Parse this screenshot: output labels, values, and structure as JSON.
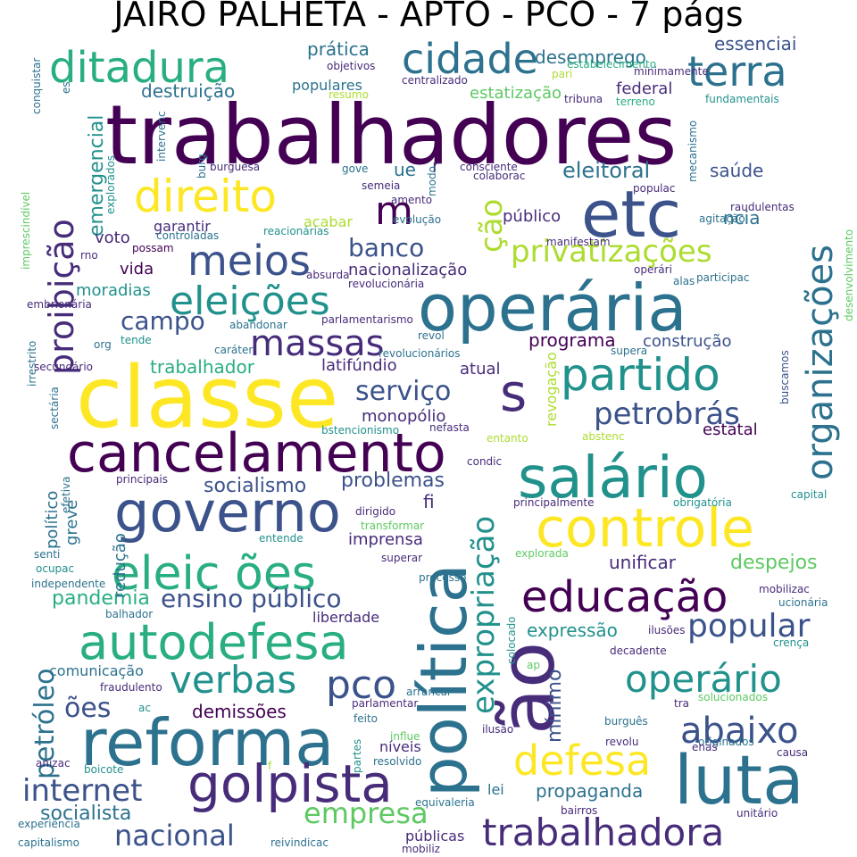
{
  "title": "JAIRO PALHETA - APTO - PCO - 7 págs",
  "palette": {
    "purple": "#440154",
    "indigo": "#472c7a",
    "blue": "#3b528b",
    "steel": "#2c728e",
    "teal": "#21918c",
    "green": "#28ae80",
    "lime": "#5ec962",
    "yellowgreen": "#addc30",
    "yellow": "#fde725"
  },
  "words": [
    {
      "text": "trabalhadores",
      "c": "purple"
    },
    {
      "text": "classe",
      "c": "yellow"
    },
    {
      "text": "operária",
      "c": "steel"
    },
    {
      "text": "política",
      "c": "steel"
    },
    {
      "text": "ão",
      "c": "indigo"
    },
    {
      "text": "cancelamento",
      "c": "purple"
    },
    {
      "text": "reforma",
      "c": "steel"
    },
    {
      "text": "salário",
      "c": "teal"
    },
    {
      "text": "luta",
      "c": "steel"
    },
    {
      "text": "governo",
      "c": "blue"
    },
    {
      "text": "controle",
      "c": "yellow"
    },
    {
      "text": "etc",
      "c": "blue"
    },
    {
      "text": "autodefesa",
      "c": "green"
    },
    {
      "text": "golpista",
      "c": "indigo"
    },
    {
      "text": "s",
      "c": "indigo"
    },
    {
      "text": "educação",
      "c": "purple"
    },
    {
      "text": "eleic ões",
      "c": "green"
    },
    {
      "text": "partido",
      "c": "teal"
    },
    {
      "text": "direito",
      "c": "yellow"
    },
    {
      "text": "eleições",
      "c": "teal"
    },
    {
      "text": "ditadura",
      "c": "green"
    },
    {
      "text": "meios",
      "c": "blue"
    },
    {
      "text": "organizações",
      "c": "steel"
    },
    {
      "text": "trabalhadora",
      "c": "indigo"
    },
    {
      "text": "cidade",
      "c": "steel"
    },
    {
      "text": "terra",
      "c": "steel"
    },
    {
      "text": "defesa",
      "c": "yellow"
    },
    {
      "text": "operário",
      "c": "teal"
    },
    {
      "text": "abaixo",
      "c": "blue"
    },
    {
      "text": "massas",
      "c": "indigo"
    },
    {
      "text": "expropriação",
      "c": "teal"
    },
    {
      "text": "verbas",
      "c": "teal"
    },
    {
      "text": "proibição",
      "c": "indigo"
    },
    {
      "text": "pco",
      "c": "blue"
    },
    {
      "text": "ção",
      "c": "yellowgreen"
    },
    {
      "text": "privatizações",
      "c": "yellowgreen"
    },
    {
      "text": "popular",
      "c": "blue"
    },
    {
      "text": "petrobrás",
      "c": "blue"
    },
    {
      "text": "internet",
      "c": "blue"
    },
    {
      "text": "nacional",
      "c": "blue"
    },
    {
      "text": "empresa",
      "c": "lime"
    },
    {
      "text": "serviço",
      "c": "blue"
    },
    {
      "text": "campo",
      "c": "blue"
    },
    {
      "text": "banco",
      "c": "blue"
    },
    {
      "text": "petróleo",
      "c": "steel"
    },
    {
      "text": "ões",
      "c": "blue"
    },
    {
      "text": "m",
      "c": "purple"
    },
    {
      "text": "socialista",
      "c": "steel"
    },
    {
      "text": "ensino público",
      "c": "blue"
    },
    {
      "text": "eleitoral",
      "c": "steel"
    },
    {
      "text": "pandemia",
      "c": "green"
    },
    {
      "text": "mínimo",
      "c": "blue"
    },
    {
      "text": "despejos",
      "c": "lime"
    },
    {
      "text": "unificar",
      "c": "indigo"
    },
    {
      "text": "propaganda",
      "c": "steel"
    },
    {
      "text": "programa",
      "c": "purple"
    },
    {
      "text": "socialismo",
      "c": "blue"
    },
    {
      "text": "problemas",
      "c": "blue"
    },
    {
      "text": "emergencial",
      "c": "teal"
    },
    {
      "text": "demissões",
      "c": "purple"
    },
    {
      "text": "expressão",
      "c": "teal"
    },
    {
      "text": "essenciai",
      "c": "blue"
    },
    {
      "text": "desemprego",
      "c": "steel"
    },
    {
      "text": "construção",
      "c": "blue"
    },
    {
      "text": "trabalhador",
      "c": "green"
    },
    {
      "text": "prática",
      "c": "steel"
    },
    {
      "text": "destruição",
      "c": "steel"
    },
    {
      "text": "monopólio",
      "c": "indigo"
    },
    {
      "text": "latifúndio",
      "c": "indigo"
    },
    {
      "text": "moradias",
      "c": "teal"
    },
    {
      "text": "liberdade",
      "c": "indigo"
    },
    {
      "text": "saúde",
      "c": "blue"
    },
    {
      "text": "público",
      "c": "indigo"
    },
    {
      "text": "estatal",
      "c": "purple"
    },
    {
      "text": "estatização",
      "c": "lime"
    },
    {
      "text": "atual",
      "c": "indigo"
    },
    {
      "text": "ncia",
      "c": "steel"
    },
    {
      "text": "nacionalização",
      "c": "indigo"
    },
    {
      "text": "garantir",
      "c": "indigo"
    },
    {
      "text": "comunicação",
      "c": "steel"
    },
    {
      "text": "redução",
      "c": "steel"
    },
    {
      "text": "federal",
      "c": "indigo"
    },
    {
      "text": "populares",
      "c": "steel"
    },
    {
      "text": "imprensa",
      "c": "indigo"
    },
    {
      "text": "voto",
      "c": "indigo"
    },
    {
      "text": "vida",
      "c": "purple"
    },
    {
      "text": "político",
      "c": "steel"
    },
    {
      "text": "níveis",
      "c": "indigo"
    },
    {
      "text": "lei",
      "c": "steel"
    },
    {
      "text": "acabar",
      "c": "yellowgreen"
    },
    {
      "text": "revogação",
      "c": "yellowgreen"
    },
    {
      "text": "ue",
      "c": "steel"
    },
    {
      "text": "r",
      "c": "indigo"
    },
    {
      "text": "fi",
      "c": "indigo"
    },
    {
      "text": "greve",
      "c": "steel"
    },
    {
      "text": "públicas",
      "c": "indigo"
    },
    {
      "text": "tribuna",
      "c": "indigo"
    },
    {
      "text": "fundamentais",
      "c": "teal"
    },
    {
      "text": "revolucionária",
      "c": "indigo"
    },
    {
      "text": "manifestam",
      "c": "indigo"
    },
    {
      "text": "principalmente",
      "c": "indigo"
    },
    {
      "text": "obrigatória",
      "c": "teal"
    },
    {
      "text": "explorada",
      "c": "lime"
    },
    {
      "text": "mobilizac",
      "c": "indigo"
    },
    {
      "text": "decadente",
      "c": "indigo"
    },
    {
      "text": "solucionados",
      "c": "lime"
    },
    {
      "text": "originados",
      "c": "steel"
    },
    {
      "text": "revolu",
      "c": "indigo"
    },
    {
      "text": "buscamos",
      "c": "blue"
    },
    {
      "text": "desenvolvimento",
      "c": "lime"
    },
    {
      "text": "estabelecimento",
      "c": "green"
    },
    {
      "text": "conquistar",
      "c": "steel"
    },
    {
      "text": "es",
      "c": "steel"
    },
    {
      "text": "objetivos",
      "c": "indigo"
    },
    {
      "text": "centralizado",
      "c": "indigo"
    },
    {
      "text": "resumo",
      "c": "yellowgreen"
    },
    {
      "text": "minimamente",
      "c": "indigo"
    },
    {
      "text": "terreno",
      "c": "green"
    },
    {
      "text": "intervenc",
      "c": "steel"
    },
    {
      "text": "burg",
      "c": "steel"
    },
    {
      "text": "burguesa",
      "c": "indigo"
    },
    {
      "text": "consciente",
      "c": "indigo"
    },
    {
      "text": "colaborac",
      "c": "indigo"
    },
    {
      "text": "populac",
      "c": "indigo"
    },
    {
      "text": "raudulentas",
      "c": "indigo"
    },
    {
      "text": "agitação",
      "c": "steel"
    },
    {
      "text": "mecanismo",
      "c": "steel"
    },
    {
      "text": "explorados",
      "c": "teal"
    },
    {
      "text": "imprescindível",
      "c": "lime"
    },
    {
      "text": "semeia",
      "c": "indigo"
    },
    {
      "text": "amento",
      "c": "indigo"
    },
    {
      "text": "evolução",
      "c": "steel"
    },
    {
      "text": "modo",
      "c": "steel"
    },
    {
      "text": "gove",
      "c": "steel"
    },
    {
      "text": "controladas",
      "c": "steel"
    },
    {
      "text": "reacionárias",
      "c": "teal"
    },
    {
      "text": "possam",
      "c": "purple"
    },
    {
      "text": "rno",
      "c": "indigo"
    },
    {
      "text": "absurda",
      "c": "indigo"
    },
    {
      "text": "alas",
      "c": "steel"
    },
    {
      "text": "participac",
      "c": "steel"
    },
    {
      "text": "operári",
      "c": "indigo"
    },
    {
      "text": "embrionária",
      "c": "indigo"
    },
    {
      "text": "irrestrito",
      "c": "steel"
    },
    {
      "text": "abandonar",
      "c": "steel"
    },
    {
      "text": "parlamentarismo",
      "c": "indigo"
    },
    {
      "text": "tende",
      "c": "teal"
    },
    {
      "text": "org",
      "c": "steel"
    },
    {
      "text": "caráter",
      "c": "steel"
    },
    {
      "text": "revol",
      "c": "steel"
    },
    {
      "text": "revolucionários",
      "c": "steel"
    },
    {
      "text": "supera",
      "c": "steel"
    },
    {
      "text": "secundário",
      "c": "indigo"
    },
    {
      "text": "sectária",
      "c": "steel"
    },
    {
      "text": "bstencionismo",
      "c": "teal"
    },
    {
      "text": "nefasta",
      "c": "indigo"
    },
    {
      "text": "entanto",
      "c": "yellowgreen"
    },
    {
      "text": "abstenc",
      "c": "yellowgreen"
    },
    {
      "text": "condic",
      "c": "indigo"
    },
    {
      "text": "principais",
      "c": "indigo"
    },
    {
      "text": "efetiva",
      "c": "steel"
    },
    {
      "text": "dirigido",
      "c": "indigo"
    },
    {
      "text": "transformar",
      "c": "lime"
    },
    {
      "text": "entende",
      "c": "teal"
    },
    {
      "text": "capital",
      "c": "teal"
    },
    {
      "text": "senti",
      "c": "steel"
    },
    {
      "text": "ocupac",
      "c": "teal"
    },
    {
      "text": "superar",
      "c": "indigo"
    },
    {
      "text": "processo",
      "c": "steel"
    },
    {
      "text": "independente",
      "c": "steel"
    },
    {
      "text": "ucionária",
      "c": "steel"
    },
    {
      "text": "balhador",
      "c": "steel"
    },
    {
      "text": "colocado",
      "c": "teal"
    },
    {
      "text": "ilusões",
      "c": "indigo"
    },
    {
      "text": "crença",
      "c": "teal"
    },
    {
      "text": "ap",
      "c": "lime"
    },
    {
      "text": "fraudulento",
      "c": "indigo"
    },
    {
      "text": "arrancar",
      "c": "steel"
    },
    {
      "text": "parlamentar",
      "c": "indigo"
    },
    {
      "text": "ac",
      "c": "teal"
    },
    {
      "text": "tra",
      "c": "indigo"
    },
    {
      "text": "burguês",
      "c": "steel"
    },
    {
      "text": "feito",
      "c": "steel"
    },
    {
      "text": "ilusão",
      "c": "indigo"
    },
    {
      "text": "influe",
      "c": "lime"
    },
    {
      "text": "enas",
      "c": "indigo"
    },
    {
      "text": "causa",
      "c": "indigo"
    },
    {
      "text": "anizac",
      "c": "indigo"
    },
    {
      "text": "boicote",
      "c": "teal"
    },
    {
      "text": "partes",
      "c": "teal"
    },
    {
      "text": "resolvido",
      "c": "steel"
    },
    {
      "text": "f",
      "c": "yellowgreen"
    },
    {
      "text": "experiência",
      "c": "steel"
    },
    {
      "text": "equivaleria",
      "c": "steel"
    },
    {
      "text": "bairros",
      "c": "indigo"
    },
    {
      "text": "unitário",
      "c": "indigo"
    },
    {
      "text": "capitalismo",
      "c": "steel"
    },
    {
      "text": "reivindicac",
      "c": "steel"
    },
    {
      "text": "mobiliz",
      "c": "indigo"
    },
    {
      "text": "pari",
      "c": "yellowgreen"
    }
  ]
}
